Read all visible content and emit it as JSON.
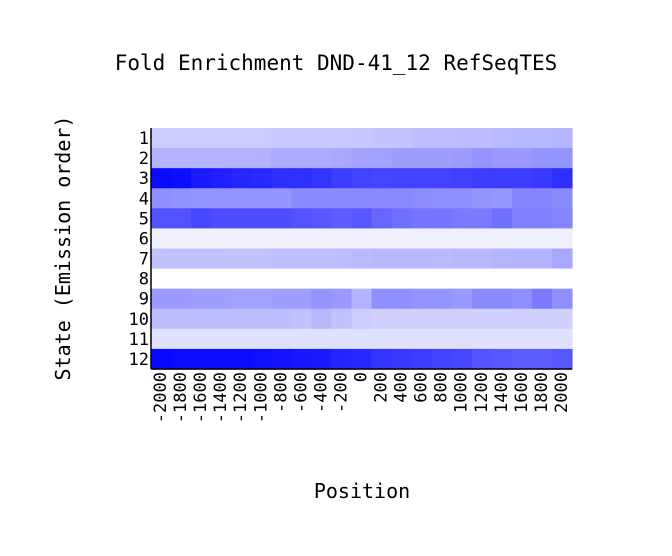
{
  "chart_data": {
    "type": "heatmap",
    "title": "Fold Enrichment DND-41_12 RefSeqTES",
    "xlabel": "Position",
    "ylabel": "State (Emission order)",
    "x": [
      -2000,
      -1800,
      -1600,
      -1400,
      -1200,
      -1000,
      -800,
      -600,
      -400,
      -200,
      0,
      200,
      400,
      600,
      800,
      1000,
      1200,
      1400,
      1600,
      1800,
      2000
    ],
    "x_tick_labels": [
      "-2000",
      "-1800",
      "-1600",
      "-1400",
      "-1200",
      "-1000",
      "-800",
      "-600",
      "-400",
      "-200",
      "0",
      "200",
      "400",
      "600",
      "800",
      "1000",
      "1200",
      "1400",
      "1600",
      "1800",
      "2000"
    ],
    "y": [
      "1",
      "2",
      "3",
      "4",
      "5",
      "6",
      "7",
      "8",
      "9",
      "10",
      "11",
      "12"
    ],
    "color_scale": {
      "low": "#ffffff",
      "high": "#0000ff"
    },
    "grid": false,
    "values": [
      [
        0.2,
        0.2,
        0.2,
        0.2,
        0.2,
        0.2,
        0.21,
        0.21,
        0.21,
        0.21,
        0.22,
        0.23,
        0.23,
        0.25,
        0.25,
        0.26,
        0.26,
        0.27,
        0.28,
        0.28,
        0.29
      ],
      [
        0.3,
        0.3,
        0.3,
        0.3,
        0.3,
        0.3,
        0.32,
        0.32,
        0.33,
        0.34,
        0.36,
        0.37,
        0.38,
        0.38,
        0.38,
        0.39,
        0.42,
        0.4,
        0.4,
        0.42,
        0.42
      ],
      [
        0.96,
        0.95,
        0.9,
        0.88,
        0.85,
        0.84,
        0.82,
        0.82,
        0.8,
        0.76,
        0.74,
        0.73,
        0.74,
        0.74,
        0.74,
        0.75,
        0.76,
        0.76,
        0.76,
        0.78,
        0.82
      ],
      [
        0.44,
        0.43,
        0.42,
        0.42,
        0.42,
        0.42,
        0.42,
        0.46,
        0.46,
        0.46,
        0.46,
        0.46,
        0.46,
        0.45,
        0.44,
        0.44,
        0.42,
        0.41,
        0.48,
        0.48,
        0.46
      ],
      [
        0.68,
        0.68,
        0.72,
        0.7,
        0.7,
        0.7,
        0.7,
        0.68,
        0.66,
        0.64,
        0.66,
        0.6,
        0.56,
        0.54,
        0.54,
        0.52,
        0.52,
        0.56,
        0.5,
        0.5,
        0.48
      ],
      [
        0.05,
        0.05,
        0.05,
        0.05,
        0.06,
        0.06,
        0.06,
        0.06,
        0.06,
        0.06,
        0.06,
        0.06,
        0.06,
        0.06,
        0.06,
        0.06,
        0.06,
        0.06,
        0.06,
        0.06,
        0.06
      ],
      [
        0.24,
        0.24,
        0.24,
        0.24,
        0.24,
        0.24,
        0.25,
        0.25,
        0.25,
        0.26,
        0.27,
        0.28,
        0.28,
        0.28,
        0.27,
        0.28,
        0.28,
        0.29,
        0.3,
        0.3,
        0.34
      ],
      [
        0.0,
        0.0,
        0.0,
        0.0,
        0.0,
        0.0,
        0.0,
        0.0,
        0.0,
        0.0,
        0.0,
        0.0,
        0.0,
        0.0,
        0.0,
        0.0,
        0.0,
        0.0,
        0.0,
        0.0,
        0.0
      ],
      [
        0.4,
        0.4,
        0.38,
        0.38,
        0.36,
        0.36,
        0.38,
        0.38,
        0.42,
        0.4,
        0.3,
        0.44,
        0.44,
        0.42,
        0.42,
        0.4,
        0.46,
        0.46,
        0.44,
        0.52,
        0.44
      ],
      [
        0.26,
        0.26,
        0.26,
        0.26,
        0.26,
        0.26,
        0.26,
        0.24,
        0.28,
        0.24,
        0.2,
        0.18,
        0.18,
        0.18,
        0.18,
        0.18,
        0.18,
        0.18,
        0.18,
        0.18,
        0.18
      ],
      [
        0.12,
        0.12,
        0.12,
        0.12,
        0.12,
        0.12,
        0.12,
        0.12,
        0.12,
        0.12,
        0.12,
        0.12,
        0.12,
        0.12,
        0.12,
        0.12,
        0.12,
        0.12,
        0.12,
        0.12,
        0.12
      ],
      [
        0.97,
        0.96,
        0.96,
        0.96,
        0.96,
        0.94,
        0.93,
        0.91,
        0.9,
        0.86,
        0.84,
        0.8,
        0.78,
        0.76,
        0.74,
        0.72,
        0.68,
        0.66,
        0.64,
        0.64,
        0.66
      ]
    ]
  }
}
